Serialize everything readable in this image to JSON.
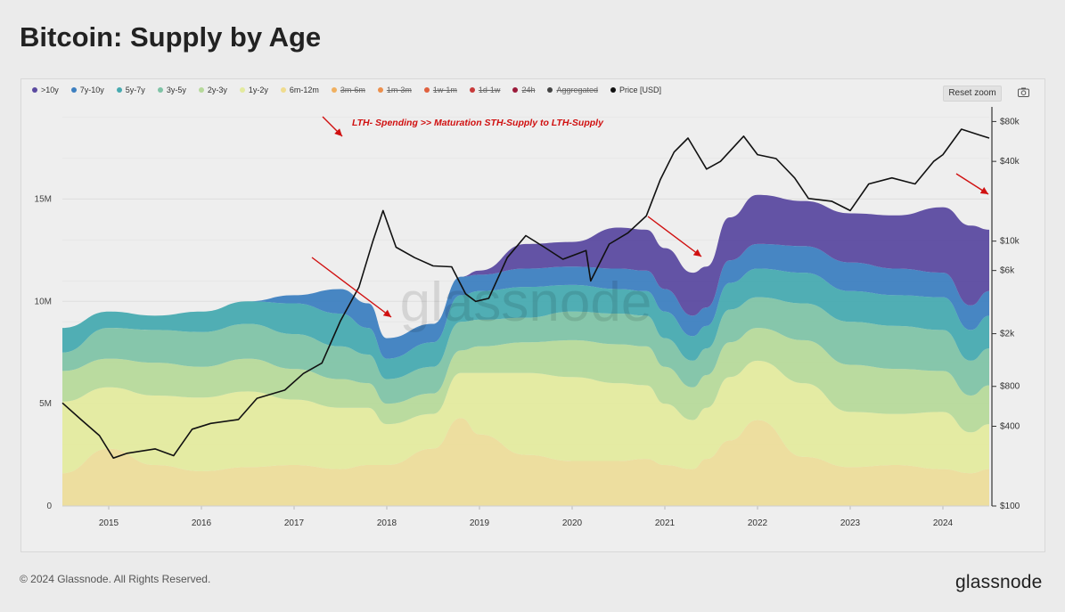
{
  "page": {
    "title": "Bitcoin: Supply by Age",
    "footer": "© 2024 Glassnode. All Rights Reserved.",
    "brand": "glassnode",
    "watermark": "glassnode",
    "reset_zoom": "Reset zoom",
    "annotation": "LTH- Spending >> Maturation STH-Supply to LTH-Supply",
    "camera_icon": "camera-icon"
  },
  "legend": [
    {
      "label": ">10y",
      "color": "#5b4aa0",
      "active": true
    },
    {
      "label": "7y-10y",
      "color": "#3d7fc0",
      "active": true
    },
    {
      "label": "5y-7y",
      "color": "#47aab0",
      "active": true
    },
    {
      "label": "3y-5y",
      "color": "#7fc3a6",
      "active": true
    },
    {
      "label": "2y-3y",
      "color": "#b6d99a",
      "active": true
    },
    {
      "label": "1y-2y",
      "color": "#e3ea9e",
      "active": true
    },
    {
      "label": "6m-12m",
      "color": "#f0dc8e",
      "active": true
    },
    {
      "label": "3m-6m",
      "color": "#f0b060",
      "active": false
    },
    {
      "label": "1m-3m",
      "color": "#ec8f4c",
      "active": false
    },
    {
      "label": "1w-1m",
      "color": "#e0603e",
      "active": false
    },
    {
      "label": "1d-1w",
      "color": "#c83a3a",
      "active": false
    },
    {
      "label": "24h",
      "color": "#9b1a3a",
      "active": false
    },
    {
      "label": "Aggregated",
      "color": "#444444",
      "active": false
    },
    {
      "label": "Price [USD]",
      "color": "#111111",
      "active": true
    }
  ],
  "chart_data": {
    "type": "area",
    "title": "Bitcoin: Supply by Age",
    "x": [
      2014.5,
      2015.0,
      2015.5,
      2016.0,
      2016.5,
      2017.0,
      2017.5,
      2017.8,
      2018.0,
      2018.5,
      2018.8,
      2019.0,
      2019.5,
      2020.0,
      2020.5,
      2020.8,
      2021.0,
      2021.3,
      2021.45,
      2021.7,
      2022.0,
      2022.5,
      2023.0,
      2023.5,
      2024.0,
      2024.3,
      2024.5
    ],
    "x_ticks": [
      "2015",
      "2016",
      "2017",
      "2018",
      "2019",
      "2020",
      "2021",
      "2022",
      "2023",
      "2024"
    ],
    "x_tick_values": [
      2015,
      2016,
      2017,
      2018,
      2019,
      2020,
      2021,
      2022,
      2023,
      2024
    ],
    "ylim": [
      0,
      19.5
    ],
    "y_ticks": [
      "0",
      "5M",
      "10M",
      "15M"
    ],
    "y_tick_values": [
      0,
      5,
      10,
      15
    ],
    "y_unit": "M BTC",
    "price_axis": {
      "scale": "log",
      "range": [
        100,
        100000
      ],
      "ticks": [
        "$100",
        "$400",
        "$800",
        "$2k",
        "$6k",
        "$10k",
        "$40k",
        "$80k"
      ],
      "tick_values": [
        100,
        400,
        800,
        2000,
        6000,
        10000,
        40000,
        80000
      ]
    },
    "series": [
      {
        "name": "6m-12m",
        "color": "#ecdc9a",
        "values": [
          1.6,
          2.8,
          2.0,
          1.7,
          1.9,
          2.0,
          1.8,
          2.0,
          2.0,
          2.8,
          4.3,
          3.5,
          2.5,
          2.2,
          2.2,
          2.3,
          2.0,
          1.8,
          2.3,
          3.2,
          4.2,
          2.4,
          1.9,
          2.0,
          1.8,
          1.6,
          1.8
        ]
      },
      {
        "name": "1y-2y",
        "color": "#e3ea9e",
        "values": [
          3.5,
          3.0,
          3.4,
          3.6,
          3.7,
          3.2,
          3.0,
          2.8,
          2.0,
          1.7,
          2.2,
          3.0,
          4.0,
          4.1,
          3.8,
          3.6,
          3.0,
          2.4,
          2.5,
          3.1,
          2.9,
          3.6,
          2.7,
          2.5,
          2.8,
          2.0,
          2.2
        ]
      },
      {
        "name": "2y-3y",
        "color": "#b6d99a",
        "values": [
          1.5,
          1.4,
          1.6,
          1.5,
          1.6,
          1.5,
          1.4,
          1.2,
          1.0,
          1.0,
          1.1,
          1.3,
          1.5,
          1.8,
          1.9,
          1.9,
          1.8,
          1.6,
          1.6,
          1.7,
          1.6,
          2.1,
          2.3,
          2.2,
          2.0,
          1.8,
          1.9
        ]
      },
      {
        "name": "3y-5y",
        "color": "#7fc3a6",
        "values": [
          0.9,
          1.5,
          1.6,
          1.7,
          1.7,
          1.7,
          1.6,
          1.4,
          1.2,
          1.3,
          1.4,
          1.3,
          1.2,
          1.4,
          1.5,
          1.5,
          1.4,
          1.3,
          1.3,
          1.6,
          1.5,
          1.8,
          2.1,
          2.1,
          2.0,
          1.7,
          1.8
        ]
      },
      {
        "name": "5y-7y",
        "color": "#47aab0",
        "values": [
          1.2,
          0.8,
          0.7,
          1.0,
          1.1,
          1.5,
          1.6,
          1.3,
          1.0,
          1.2,
          1.3,
          1.4,
          1.5,
          1.3,
          1.2,
          1.2,
          1.3,
          1.2,
          1.1,
          1.3,
          1.4,
          1.5,
          1.5,
          1.5,
          1.6,
          1.5,
          1.6
        ]
      },
      {
        "name": "7y-10y",
        "color": "#3d7fc0",
        "values": [
          0.0,
          0.0,
          0.0,
          0.0,
          0.0,
          0.4,
          1.2,
          1.2,
          1.0,
          0.9,
          0.9,
          0.8,
          0.9,
          0.9,
          1.0,
          1.0,
          1.1,
          1.0,
          0.9,
          1.1,
          1.2,
          1.3,
          1.4,
          1.3,
          1.2,
          1.2,
          1.2
        ]
      },
      {
        "name": ">10y",
        "color": "#5b4aa0",
        "values": [
          0.0,
          0.0,
          0.0,
          0.0,
          0.0,
          0.0,
          0.0,
          0.0,
          0.0,
          0.0,
          0.0,
          0.2,
          1.2,
          1.2,
          2.0,
          2.0,
          2.0,
          2.1,
          2.0,
          2.1,
          2.4,
          2.2,
          2.4,
          2.6,
          3.2,
          3.9,
          3.0
        ]
      }
    ],
    "price": {
      "name": "Price [USD]",
      "color": "#111111",
      "x": [
        2014.5,
        2014.7,
        2014.9,
        2015.05,
        2015.2,
        2015.5,
        2015.7,
        2015.9,
        2016.1,
        2016.4,
        2016.6,
        2016.9,
        2017.1,
        2017.3,
        2017.5,
        2017.7,
        2017.85,
        2017.96,
        2018.1,
        2018.3,
        2018.5,
        2018.7,
        2018.85,
        2018.96,
        2019.1,
        2019.3,
        2019.5,
        2019.7,
        2019.9,
        2020.15,
        2020.2,
        2020.4,
        2020.6,
        2020.8,
        2020.95,
        2021.1,
        2021.25,
        2021.45,
        2021.6,
        2021.85,
        2022.0,
        2022.2,
        2022.4,
        2022.55,
        2022.8,
        2023.0,
        2023.2,
        2023.45,
        2023.7,
        2023.9,
        2024.0,
        2024.2,
        2024.4,
        2024.5
      ],
      "y": [
        600,
        450,
        340,
        230,
        250,
        270,
        240,
        380,
        420,
        450,
        650,
        750,
        1000,
        1200,
        2500,
        4500,
        10000,
        17000,
        9000,
        7500,
        6500,
        6400,
        4000,
        3500,
        3700,
        7500,
        11000,
        9000,
        7300,
        8500,
        5000,
        9500,
        11500,
        15500,
        29000,
        47000,
        60000,
        35000,
        40000,
        62000,
        45000,
        42000,
        30000,
        21000,
        20000,
        17000,
        27000,
        30000,
        27000,
        40000,
        45000,
        70000,
        63000,
        60000
      ]
    }
  }
}
